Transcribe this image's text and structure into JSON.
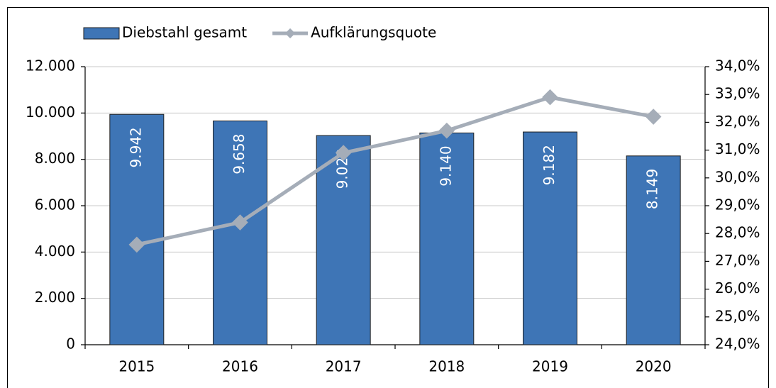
{
  "chart_data": {
    "type": "bar",
    "categories": [
      "2015",
      "2016",
      "2017",
      "2018",
      "2019",
      "2020"
    ],
    "series": [
      {
        "name": "Diebstahl gesamt",
        "type": "bar",
        "color": "#3e75b6",
        "values": [
          9942,
          9658,
          9029,
          9140,
          9182,
          8149
        ],
        "value_labels": [
          "9.942",
          "9.658",
          "9.029",
          "9.140",
          "9.182",
          "8.149"
        ]
      },
      {
        "name": "Aufklärungsquote",
        "type": "line",
        "axis": "y2",
        "color": "#a5adb8",
        "values": [
          27.6,
          28.4,
          30.9,
          31.7,
          32.9,
          32.2
        ]
      }
    ],
    "ylim": [
      0,
      12000
    ],
    "yticks": [
      0,
      {
        "value": 2000,
        "label": "2.000"
      },
      {
        "value": 4000,
        "label": "4.000"
      },
      {
        "value": 6000,
        "label": "6.000"
      },
      {
        "value": 8000,
        "label": "8.000"
      },
      {
        "value": 10000,
        "label": "10.000"
      },
      {
        "value": 12000,
        "label": "12.000"
      }
    ],
    "y2lim": [
      24,
      34
    ],
    "y2ticks": [
      {
        "value": 24,
        "label": "24,0%"
      },
      {
        "value": 25,
        "label": "25,0%"
      },
      {
        "value": 26,
        "label": "26,0%"
      },
      {
        "value": 27,
        "label": "27,0%"
      },
      {
        "value": 28,
        "label": "28,0%"
      },
      {
        "value": 29,
        "label": "29,0%"
      },
      {
        "value": 30,
        "label": "30,0%"
      },
      {
        "value": 31,
        "label": "31,0%"
      },
      {
        "value": 32,
        "label": "32,0%"
      },
      {
        "value": 33,
        "label": "33,0%"
      },
      {
        "value": 34,
        "label": "34,0%"
      }
    ],
    "grid": true,
    "legend": "top"
  }
}
